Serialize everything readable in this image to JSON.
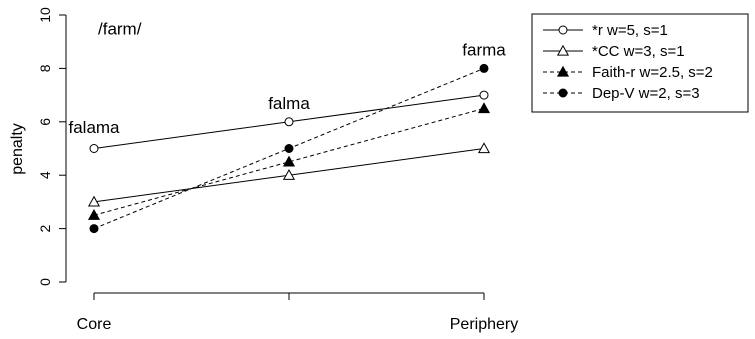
{
  "chart_data": {
    "type": "line",
    "title": "",
    "xlabel": "",
    "ylabel": "penalty",
    "categories": [
      "Core",
      "",
      "Periphery"
    ],
    "x": [
      0,
      1,
      2
    ],
    "ylim": [
      0,
      10
    ],
    "yticks": [
      0,
      2,
      4,
      6,
      8,
      10
    ],
    "grid": false,
    "legend_position": "right",
    "series": [
      {
        "name": "*r",
        "legend_label": "*r      w=5, s=1",
        "values": [
          5,
          6,
          7
        ],
        "marker": "circle-open",
        "line": "solid"
      },
      {
        "name": "*CC",
        "legend_label": "*CC    w=3, s=1",
        "values": [
          3,
          4,
          5
        ],
        "marker": "triangle-open",
        "line": "solid"
      },
      {
        "name": "Faith-r",
        "legend_label": "Faith-r  w=2.5, s=2",
        "values": [
          2.5,
          4.5,
          6.5
        ],
        "marker": "triangle-filled",
        "line": "dashed"
      },
      {
        "name": "Dep-V",
        "legend_label": "Dep-V  w=2, s=3",
        "values": [
          2,
          5,
          8
        ],
        "marker": "circle-filled",
        "line": "dashed"
      }
    ],
    "annotations": [
      {
        "text": "/farm/",
        "x": 0,
        "y": 9.5
      },
      {
        "text": "falama",
        "x": 0,
        "y": 5.8
      },
      {
        "text": "falma",
        "x": 1,
        "y": 6.7
      },
      {
        "text": "farma",
        "x": 2,
        "y": 8.7
      }
    ]
  }
}
